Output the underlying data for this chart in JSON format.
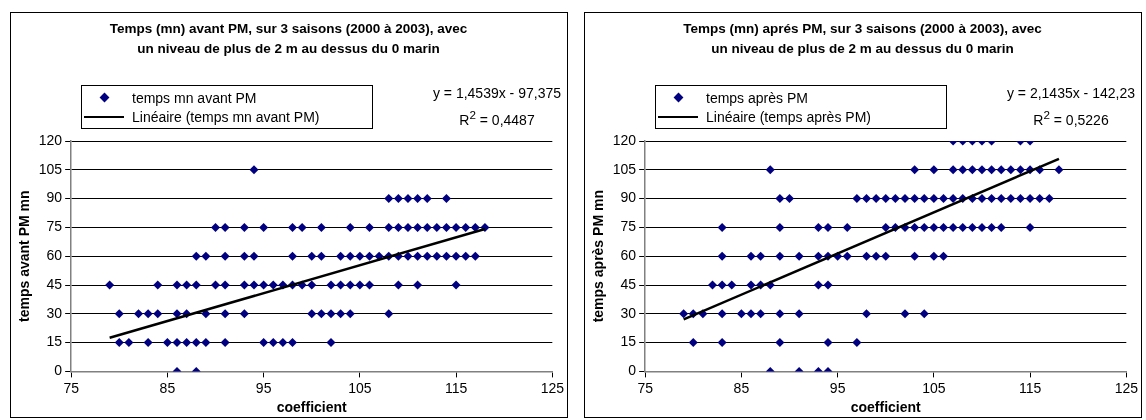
{
  "chart_data": [
    {
      "type": "scatter",
      "title": "Temps (mn) avant PM, sur 3 saisons (2000 à 2003), avec un niveau de plus de 2 m au dessus du 0 marin",
      "xlabel": "coefficient",
      "ylabel": "temps avant PM mn",
      "xlim": [
        75,
        125
      ],
      "xticks": [
        75,
        85,
        95,
        105,
        115,
        125
      ],
      "ylim": [
        0,
        120
      ],
      "yticks": [
        0,
        15,
        30,
        45,
        60,
        75,
        90,
        105,
        120
      ],
      "grid": "y",
      "legend": "top",
      "annotations": [
        "y = 1,4539x - 97,375",
        "R$^{2}$ = 0,4487"
      ],
      "series": [
        {
          "name": "temps mn avant PM",
          "marker": "diamond",
          "color": "#000080",
          "x": [
            86,
            88,
            80,
            81,
            83,
            85,
            86,
            87,
            88,
            89,
            91,
            95,
            96,
            97,
            98,
            102,
            80,
            82,
            83,
            84,
            86,
            87,
            89,
            91,
            93,
            100,
            101,
            102,
            103,
            104,
            108,
            79,
            84,
            86,
            87,
            88,
            90,
            91,
            93,
            94,
            95,
            96,
            97,
            98,
            99,
            100,
            102,
            103,
            104,
            105,
            106,
            109,
            111,
            115,
            88,
            89,
            91,
            93,
            94,
            98,
            100,
            101,
            103,
            104,
            105,
            106,
            107,
            108,
            109,
            110,
            111,
            112,
            113,
            114,
            115,
            116,
            117,
            90,
            91,
            93,
            95,
            98,
            99,
            101,
            104,
            106,
            108,
            109,
            110,
            111,
            112,
            113,
            114,
            115,
            116,
            117,
            118,
            108,
            109,
            110,
            111,
            112,
            114,
            94
          ],
          "values": [
            0,
            0,
            15,
            15,
            15,
            15,
            15,
            15,
            15,
            15,
            15,
            15,
            15,
            15,
            15,
            15,
            30,
            30,
            30,
            30,
            30,
            30,
            30,
            30,
            30,
            30,
            30,
            30,
            30,
            30,
            30,
            45,
            45,
            45,
            45,
            45,
            45,
            45,
            45,
            45,
            45,
            45,
            45,
            45,
            45,
            45,
            45,
            45,
            45,
            45,
            45,
            45,
            45,
            45,
            60,
            60,
            60,
            60,
            60,
            60,
            60,
            60,
            60,
            60,
            60,
            60,
            60,
            60,
            60,
            60,
            60,
            60,
            60,
            60,
            60,
            60,
            60,
            75,
            75,
            75,
            75,
            75,
            75,
            75,
            75,
            75,
            75,
            75,
            75,
            75,
            75,
            75,
            75,
            75,
            75,
            75,
            75,
            90,
            90,
            90,
            90,
            90,
            90,
            105
          ]
        },
        {
          "name": "Linéaire (temps mn avant PM)",
          "type": "line",
          "marker": "none",
          "color": "#000000",
          "x": [
            79,
            118
          ],
          "values": [
            17.5,
            74.2
          ]
        }
      ]
    },
    {
      "type": "scatter",
      "title": "Temps (mn) aprés PM, sur 3 saisons (2000 à 2003), avec un niveau de plus de 2 m au dessus du 0 marin",
      "xlabel": "coefficient",
      "ylabel": "temps après PM mn",
      "xlim": [
        75,
        125
      ],
      "xticks": [
        75,
        85,
        95,
        105,
        115,
        125
      ],
      "ylim": [
        0,
        120
      ],
      "yticks": [
        0,
        15,
        30,
        45,
        60,
        75,
        90,
        105,
        120
      ],
      "grid": "y",
      "legend": "top",
      "annotations": [
        "y = 2,1435x - 142,23",
        "R$^{2}$ = 0,5226"
      ],
      "series": [
        {
          "name": "temps après PM",
          "marker": "diamond",
          "color": "#000080",
          "x": [
            88,
            91,
            93,
            94,
            80,
            83,
            89,
            94,
            97,
            79,
            80,
            81,
            83,
            85,
            86,
            87,
            89,
            91,
            98,
            102,
            104,
            82,
            83,
            84,
            86,
            87,
            88,
            93,
            94,
            83,
            86,
            87,
            89,
            91,
            93,
            94,
            95,
            96,
            98,
            99,
            100,
            103,
            105,
            106,
            83,
            89,
            93,
            94,
            96,
            100,
            101,
            102,
            103,
            104,
            105,
            106,
            107,
            108,
            109,
            110,
            111,
            112,
            115,
            89,
            90,
            97,
            98,
            99,
            100,
            101,
            102,
            103,
            104,
            105,
            106,
            107,
            108,
            109,
            110,
            111,
            112,
            113,
            114,
            115,
            116,
            117,
            88,
            103,
            105,
            107,
            108,
            109,
            110,
            111,
            112,
            113,
            114,
            115,
            116,
            118,
            107,
            108,
            109,
            110,
            111,
            114,
            115
          ],
          "values": [
            0,
            0,
            0,
            0,
            15,
            15,
            15,
            15,
            15,
            30,
            30,
            30,
            30,
            30,
            30,
            30,
            30,
            30,
            30,
            30,
            30,
            45,
            45,
            45,
            45,
            45,
            45,
            45,
            45,
            60,
            60,
            60,
            60,
            60,
            60,
            60,
            60,
            60,
            60,
            60,
            60,
            60,
            60,
            60,
            75,
            75,
            75,
            75,
            75,
            75,
            75,
            75,
            75,
            75,
            75,
            75,
            75,
            75,
            75,
            75,
            75,
            75,
            75,
            90,
            90,
            90,
            90,
            90,
            90,
            90,
            90,
            90,
            90,
            90,
            90,
            90,
            90,
            90,
            90,
            90,
            90,
            90,
            90,
            90,
            90,
            90,
            105,
            105,
            105,
            105,
            105,
            105,
            105,
            105,
            105,
            105,
            105,
            105,
            105,
            105,
            120,
            120,
            120,
            120,
            120,
            120,
            120
          ]
        },
        {
          "name": "Linéaire (temps après PM)",
          "type": "line",
          "marker": "none",
          "color": "#000000",
          "x": [
            79,
            118
          ],
          "values": [
            27.1,
            110.7
          ]
        }
      ]
    }
  ]
}
